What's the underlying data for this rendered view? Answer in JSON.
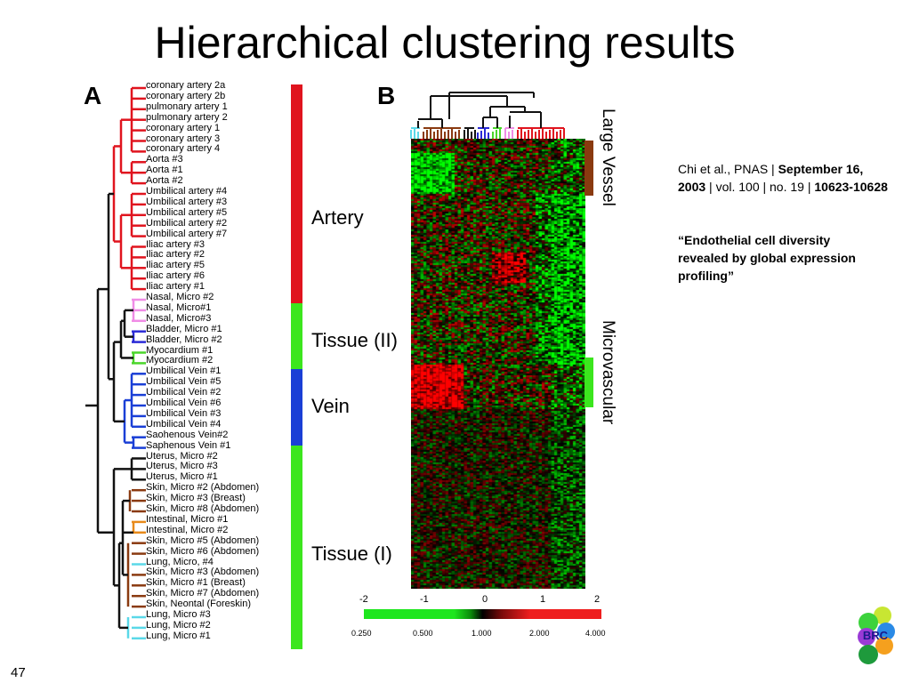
{
  "title": "Hierarchical clustering results",
  "panels": {
    "a": "A",
    "b": "B"
  },
  "samples": [
    {
      "label": "coronary artery 2a",
      "group": "artery"
    },
    {
      "label": "coronary artery 2b",
      "group": "artery"
    },
    {
      "label": "pulmonary artery 1",
      "group": "artery"
    },
    {
      "label": "pulmonary artery 2",
      "group": "artery"
    },
    {
      "label": "coronary artery 1",
      "group": "artery"
    },
    {
      "label": "coronary artery 3",
      "group": "artery"
    },
    {
      "label": "coronary artery 4",
      "group": "artery"
    },
    {
      "label": "Aorta #3",
      "group": "artery"
    },
    {
      "label": "Aorta #1",
      "group": "artery"
    },
    {
      "label": "Aorta #2",
      "group": "artery"
    },
    {
      "label": "Umbilical artery #4",
      "group": "artery"
    },
    {
      "label": "Umbilical artery #3",
      "group": "artery"
    },
    {
      "label": "Umbilical artery #5",
      "group": "artery"
    },
    {
      "label": "Umbilical artery #2",
      "group": "artery"
    },
    {
      "label": "Umbilical artery #7",
      "group": "artery"
    },
    {
      "label": "Iliac artery #3",
      "group": "artery"
    },
    {
      "label": "Iliac artery #2",
      "group": "artery"
    },
    {
      "label": "Iliac artery #5",
      "group": "artery"
    },
    {
      "label": "Iliac artery #6",
      "group": "artery"
    },
    {
      "label": "Iliac artery #1",
      "group": "artery"
    },
    {
      "label": "Nasal, Micro #2",
      "group": "nasal"
    },
    {
      "label": "Nasal, Micro#1",
      "group": "nasal"
    },
    {
      "label": "Nasal, Micro#3",
      "group": "nasal"
    },
    {
      "label": "Bladder, Micro #1",
      "group": "bladder"
    },
    {
      "label": "Bladder, Micro #2",
      "group": "bladder"
    },
    {
      "label": "Myocardium #1",
      "group": "myocardium"
    },
    {
      "label": "Myocardium #2",
      "group": "myocardium"
    },
    {
      "label": "Umbilical Vein #1",
      "group": "vein"
    },
    {
      "label": "Umbilical Vein #5",
      "group": "vein"
    },
    {
      "label": "Umbilical Vein #2",
      "group": "vein"
    },
    {
      "label": "Umbilical Vein #6",
      "group": "vein"
    },
    {
      "label": "Umbilical Vein #3",
      "group": "vein"
    },
    {
      "label": "Umbilical Vein #4",
      "group": "vein"
    },
    {
      "label": "Saohenous Vein#2",
      "group": "vein"
    },
    {
      "label": "Saphenous Vein #1",
      "group": "vein"
    },
    {
      "label": "Uterus, Micro #2",
      "group": "uterus"
    },
    {
      "label": "Uterus, Micro #3",
      "group": "uterus"
    },
    {
      "label": "Uterus, Micro #1",
      "group": "uterus"
    },
    {
      "label": "Skin, Micro #2 (Abdomen)",
      "group": "skin"
    },
    {
      "label": "Skin, Micro #3 (Breast)",
      "group": "skin"
    },
    {
      "label": "Skin, Micro #8 (Abdomen)",
      "group": "skin"
    },
    {
      "label": "Intestinal, Micro #1",
      "group": "intestinal"
    },
    {
      "label": "Intestinal, Micro #2",
      "group": "intestinal"
    },
    {
      "label": "Skin, Micro #5 (Abdomen)",
      "group": "skin"
    },
    {
      "label": "Skin, Micro #6 (Abdomen)",
      "group": "skin"
    },
    {
      "label": "Lung, Micro, #4",
      "group": "lung"
    },
    {
      "label": "Skin, Micro #3 (Abdomen)",
      "group": "skin"
    },
    {
      "label": "Skin, Micro #1 (Breast)",
      "group": "skin"
    },
    {
      "label": "Skin, Micro #7 (Abdomen)",
      "group": "skin"
    },
    {
      "label": "Skin, Neontal (Foreskin)",
      "group": "skin"
    },
    {
      "label": "Lung, Micro #3",
      "group": "lung"
    },
    {
      "label": "Lung, Micro #2",
      "group": "lung"
    },
    {
      "label": "Lung, Micro #1",
      "group": "lung"
    }
  ],
  "group_colors": {
    "artery": "#e0141e",
    "nasal": "#f08ce6",
    "bladder": "#2a2ad6",
    "myocardium": "#4ad62a",
    "vein": "#1a3fd6",
    "uterus": "#111111",
    "skin": "#8a3a10",
    "intestinal": "#e88a1a",
    "lung": "#5ad8e8"
  },
  "category_groups": [
    {
      "label": "Artery",
      "color": "#e0141e"
    },
    {
      "label": "Tissue (II)",
      "color": "#3ce61e"
    },
    {
      "label": "Vein",
      "color": "#1a3fd6"
    },
    {
      "label": "Tissue (I)",
      "color": "#3ce61e"
    }
  ],
  "side_labels": [
    {
      "label": "Large Vessel",
      "color": "#8a3a10"
    },
    {
      "label": "Microvascular",
      "color": "#3ce61e"
    }
  ],
  "color_scale": {
    "log_ticks": [
      "-2",
      "-1",
      "0",
      "1",
      "2"
    ],
    "ratio_ticks": [
      "0.250",
      "0.500",
      "1.000",
      "2.000",
      "4.000"
    ],
    "low_color": "#1ee61e",
    "mid_color": "#000000",
    "high_color": "#ee1e1e"
  },
  "citation": {
    "prefix": "Chi et al., PNAS | ",
    "date": "September 16, 2003",
    "volume": " | vol. 100 | no. 19 | ",
    "pages": "10623-10628"
  },
  "quote": "“Endothelial cell diversity revealed by global expression profiling”",
  "slide_number": "47",
  "logo_text": "BRC"
}
